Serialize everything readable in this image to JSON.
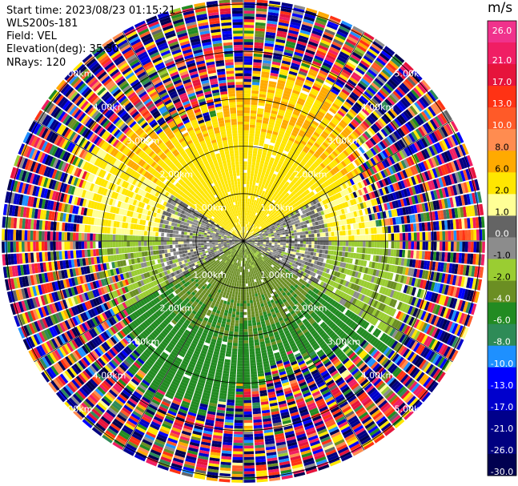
{
  "header": {
    "start_time": "Start time: 2023/08/23 01:15:21",
    "instrument": "WLS200s-181",
    "field": "Field: VEL",
    "elevation": "Elevation(deg): 35.30",
    "nrays": "NRays: 120"
  },
  "colorbar": {
    "unit": "m/s",
    "ticks": [
      "26.0",
      "21.0",
      "17.0",
      "13.0",
      "10.0",
      "8.0",
      "6.0",
      "2.0",
      "1.0",
      "0.0",
      "-1.0",
      "-2.0",
      "-4.0",
      "-6.0",
      "-8.0",
      "-10.0",
      "-13.0",
      "-17.0",
      "-21.0",
      "-26.0",
      "-30.0"
    ],
    "colors": [
      "#f0328c",
      "#f01e64",
      "#e6143c",
      "#ff3214",
      "#ff5a28",
      "#ff8c50",
      "#ffaa00",
      "#ffe600",
      "#ffff96",
      "#646464",
      "#8c8c8c",
      "#9acd32",
      "#6b8e23",
      "#228b22",
      "#2e8b57",
      "#1e90ff",
      "#0000ff",
      "#0000cd",
      "#00008b",
      "#000080",
      "#000050"
    ]
  },
  "chart_data": {
    "type": "heatmap",
    "projection": "polar-ppi",
    "nrays": 120,
    "range_unit": "km",
    "range_rings_km": [
      1.0,
      2.0,
      3.0,
      4.0,
      5.0
    ],
    "range_labels": [
      "1.00km",
      "2.00km",
      "3.00km",
      "4.00km",
      "5.00km"
    ],
    "spokes_deg": [
      0,
      30,
      60,
      90,
      120,
      150,
      180,
      210,
      240,
      270,
      300,
      330
    ],
    "max_range_km": 5.1,
    "value_range": [
      -30.0,
      26.0
    ],
    "velocity_pattern": {
      "north_sector_mps": [
        2.0,
        6.0
      ],
      "east_west_sector_mps": [
        -1.0,
        1.0
      ],
      "south_sector_mps": [
        -8.0,
        -2.0
      ],
      "noise_beyond_km": 3.3
    }
  }
}
